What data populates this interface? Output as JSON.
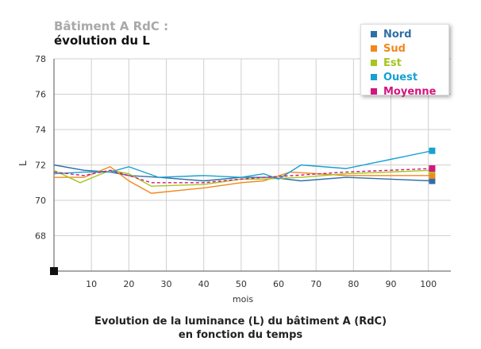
{
  "title_line1": "Bâtiment A RdC :",
  "title_line2": "évolution du L",
  "caption_line1": "Evolution de la luminance (L) du bâtiment A (RdC)",
  "caption_line2": "en fonction du temps",
  "chart_data": {
    "type": "line",
    "xlabel": "mois",
    "ylabel": "L",
    "xlim": [
      0,
      106
    ],
    "ylim": [
      66,
      78
    ],
    "x_ticks": [
      10,
      20,
      30,
      40,
      50,
      60,
      70,
      80,
      90,
      100
    ],
    "y_ticks": [
      68,
      70,
      72,
      74,
      76,
      78
    ],
    "grid": true,
    "legend_position": "top-right",
    "series": [
      {
        "name": "Nord",
        "color": "#2f6ea5",
        "dash": false,
        "marker": true,
        "x": [
          0,
          8,
          15,
          20,
          28,
          40,
          50,
          58,
          66,
          78,
          101
        ],
        "y": [
          72.0,
          71.7,
          71.6,
          71.4,
          71.3,
          71.1,
          71.3,
          71.3,
          71.1,
          71.3,
          71.1
        ]
      },
      {
        "name": "Sud",
        "color": "#f0891c",
        "dash": false,
        "marker": true,
        "x": [
          0,
          8,
          15,
          20,
          26,
          40,
          50,
          56,
          63,
          78,
          101
        ],
        "y": [
          71.3,
          71.3,
          71.9,
          71.1,
          70.4,
          70.7,
          71.0,
          71.1,
          71.6,
          71.4,
          71.4
        ]
      },
      {
        "name": "Est",
        "color": "#a6c520",
        "dash": false,
        "marker": true,
        "x": [
          0,
          7,
          15,
          20,
          26,
          40,
          50,
          56,
          66,
          78,
          101
        ],
        "y": [
          71.7,
          71.0,
          71.7,
          71.5,
          70.8,
          70.9,
          71.2,
          71.2,
          71.3,
          71.5,
          71.7
        ]
      },
      {
        "name": "Ouest",
        "color": "#18a1d1",
        "dash": false,
        "marker": true,
        "x": [
          0,
          8,
          15,
          20,
          28,
          40,
          50,
          56,
          60,
          66,
          78,
          101
        ],
        "y": [
          71.5,
          71.6,
          71.6,
          71.9,
          71.3,
          71.4,
          71.3,
          71.5,
          71.2,
          72.0,
          71.8,
          72.8
        ]
      },
      {
        "name": "Moyenne",
        "color": "#d4147f",
        "dash": true,
        "marker": true,
        "x": [
          0,
          8,
          15,
          20,
          26,
          40,
          50,
          56,
          64,
          78,
          101
        ],
        "y": [
          71.6,
          71.4,
          71.7,
          71.4,
          71.0,
          71.0,
          71.2,
          71.3,
          71.4,
          71.6,
          71.8
        ]
      }
    ]
  }
}
